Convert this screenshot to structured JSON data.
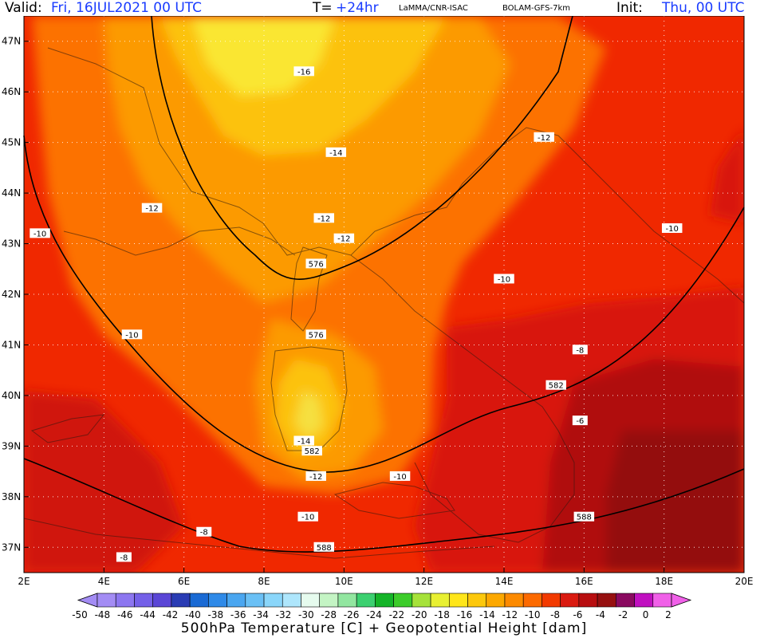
{
  "header": {
    "valid_label": "Valid:",
    "valid_value": "Fri, 16JUL2021   00 UTC",
    "t_label": "T=",
    "t_value": "+24hr",
    "source1": "LaMMA/CNR-ISAC",
    "source2": "BOLAM-GFS-7km",
    "init_label": "Init:",
    "init_value": "Thu, 00 UTC",
    "value_color": "#1a3cff"
  },
  "map": {
    "lon_range": [
      2,
      20
    ],
    "lat_range": [
      36.5,
      47.5
    ],
    "lon_ticks": [
      "2E",
      "4E",
      "6E",
      "8E",
      "10E",
      "12E",
      "14E",
      "16E",
      "18E",
      "20E"
    ],
    "lat_ticks": [
      "37N",
      "38N",
      "39N",
      "40N",
      "41N",
      "42N",
      "43N",
      "44N",
      "45N",
      "46N",
      "47N"
    ],
    "grid": "dotted",
    "temperature_labels": [
      {
        "text": "-16",
        "lon": 9.0,
        "lat": 46.4
      },
      {
        "text": "-14",
        "lon": 9.8,
        "lat": 44.8
      },
      {
        "text": "-12",
        "lon": 5.2,
        "lat": 43.7
      },
      {
        "text": "-12",
        "lon": 9.5,
        "lat": 43.5
      },
      {
        "text": "-12",
        "lon": 10.0,
        "lat": 43.1
      },
      {
        "text": "-12",
        "lon": 15.0,
        "lat": 45.1
      },
      {
        "text": "-10",
        "lon": 2.4,
        "lat": 43.2
      },
      {
        "text": "-10",
        "lon": 18.2,
        "lat": 43.3
      },
      {
        "text": "-10",
        "lon": 14.0,
        "lat": 42.3
      },
      {
        "text": "-10",
        "lon": 4.7,
        "lat": 41.2
      },
      {
        "text": "-8",
        "lon": 15.9,
        "lat": 40.9
      },
      {
        "text": "-6",
        "lon": 15.9,
        "lat": 39.5
      },
      {
        "text": "-14",
        "lon": 9.0,
        "lat": 39.1
      },
      {
        "text": "-12",
        "lon": 9.3,
        "lat": 38.4
      },
      {
        "text": "-10",
        "lon": 11.4,
        "lat": 38.4
      },
      {
        "text": "-10",
        "lon": 9.1,
        "lat": 37.6
      },
      {
        "text": "-8",
        "lon": 6.5,
        "lat": 37.3
      },
      {
        "text": "-8",
        "lon": 4.5,
        "lat": 36.8
      }
    ],
    "height_labels": [
      {
        "text": "576",
        "lon": 9.3,
        "lat": 42.6
      },
      {
        "text": "576",
        "lon": 9.3,
        "lat": 41.2
      },
      {
        "text": "582",
        "lon": 9.2,
        "lat": 38.9
      },
      {
        "text": "582",
        "lon": 15.3,
        "lat": 40.2
      },
      {
        "text": "588",
        "lon": 9.5,
        "lat": 37.0
      },
      {
        "text": "588",
        "lon": 16.0,
        "lat": 37.6
      }
    ]
  },
  "legend": {
    "ticks": [
      "-50",
      "-48",
      "-46",
      "-44",
      "-42",
      "-40",
      "-38",
      "-36",
      "-34",
      "-32",
      "-30",
      "-28",
      "-26",
      "-24",
      "-22",
      "-20",
      "-18",
      "-16",
      "-14",
      "-12",
      "-10",
      "-8",
      "-6",
      "-4",
      "-2",
      "0",
      "2"
    ],
    "colors": [
      "#a38cf4",
      "#8c76f0",
      "#7460e8",
      "#5a46d6",
      "#2a3cb4",
      "#1a6ad4",
      "#2f8ae8",
      "#4aa6f0",
      "#6ac0f5",
      "#8ad6fa",
      "#aee6fc",
      "#e6fbee",
      "#c4f4c4",
      "#92e6a0",
      "#3cd070",
      "#14b428",
      "#3ccc2a",
      "#a6e23a",
      "#e8f032",
      "#ffe61a",
      "#fcc80c",
      "#fca800",
      "#fc8a00",
      "#fc6a00",
      "#f23a00",
      "#da1a10",
      "#b80e10",
      "#961010",
      "#8a0a60",
      "#c010c0",
      "#f060e8"
    ],
    "title": "500hPa Temperature [C] + Geopotential Height [dam]"
  }
}
